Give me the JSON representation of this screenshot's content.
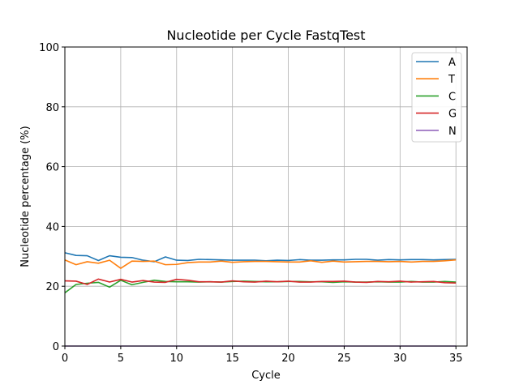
{
  "chart_data": {
    "type": "line",
    "title": "Nucleotide per Cycle FastqTest",
    "xlabel": "Cycle",
    "ylabel": "Nucleotide percentage (%)",
    "xlim": [
      0,
      36
    ],
    "ylim": [
      0,
      100
    ],
    "xticks": [
      0,
      5,
      10,
      15,
      20,
      25,
      30,
      35
    ],
    "yticks": [
      0,
      20,
      40,
      60,
      80,
      100
    ],
    "grid": true,
    "legend_position": "top-right",
    "x": [
      0,
      1,
      2,
      3,
      4,
      5,
      6,
      7,
      8,
      9,
      10,
      11,
      12,
      13,
      14,
      15,
      16,
      17,
      18,
      19,
      20,
      21,
      22,
      23,
      24,
      25,
      26,
      27,
      28,
      29,
      30,
      31,
      32,
      33,
      34,
      35
    ],
    "series": [
      {
        "name": "A",
        "color": "#1f77b4",
        "values": [
          31.2,
          30.3,
          30.2,
          28.6,
          30.2,
          29.7,
          29.6,
          28.7,
          28.2,
          29.8,
          28.7,
          28.6,
          29.0,
          28.9,
          28.8,
          28.7,
          28.7,
          28.7,
          28.5,
          28.7,
          28.6,
          28.9,
          28.7,
          28.7,
          28.8,
          28.8,
          29.0,
          29.0,
          28.7,
          28.9,
          28.8,
          28.9,
          28.9,
          28.8,
          28.9,
          29.0
        ]
      },
      {
        "name": "T",
        "color": "#ff7f0e",
        "values": [
          28.8,
          27.2,
          28.2,
          27.7,
          28.7,
          26.0,
          28.4,
          28.3,
          28.4,
          27.2,
          27.3,
          27.9,
          28.1,
          28.1,
          28.4,
          28.0,
          28.2,
          28.3,
          28.3,
          28.2,
          28.1,
          28.1,
          28.5,
          28.0,
          28.4,
          28.1,
          28.2,
          28.3,
          28.3,
          28.2,
          28.3,
          28.1,
          28.3,
          28.3,
          28.5,
          28.8
        ]
      },
      {
        "name": "C",
        "color": "#2ca02c",
        "values": [
          17.8,
          20.6,
          21.0,
          21.3,
          19.7,
          22.0,
          20.5,
          21.3,
          22.0,
          21.6,
          21.5,
          21.5,
          21.4,
          21.5,
          21.4,
          21.6,
          21.7,
          21.6,
          21.5,
          21.5,
          21.6,
          21.6,
          21.5,
          21.5,
          21.3,
          21.5,
          21.4,
          21.4,
          21.5,
          21.4,
          21.4,
          21.6,
          21.4,
          21.4,
          21.6,
          21.4
        ]
      },
      {
        "name": "G",
        "color": "#d62728",
        "values": [
          21.8,
          21.7,
          20.6,
          22.4,
          21.4,
          22.3,
          21.4,
          21.9,
          21.4,
          21.3,
          22.3,
          22.0,
          21.5,
          21.5,
          21.4,
          21.8,
          21.5,
          21.4,
          21.7,
          21.5,
          21.7,
          21.4,
          21.4,
          21.6,
          21.6,
          21.7,
          21.4,
          21.3,
          21.6,
          21.5,
          21.7,
          21.4,
          21.5,
          21.6,
          21.2,
          21.1
        ]
      },
      {
        "name": "N",
        "color": "#9467bd",
        "values": [
          0,
          0,
          0,
          0,
          0,
          0,
          0,
          0,
          0,
          0,
          0,
          0,
          0,
          0,
          0,
          0,
          0,
          0,
          0,
          0,
          0,
          0,
          0,
          0,
          0,
          0,
          0,
          0,
          0,
          0,
          0,
          0,
          0,
          0,
          0,
          0
        ]
      }
    ]
  }
}
